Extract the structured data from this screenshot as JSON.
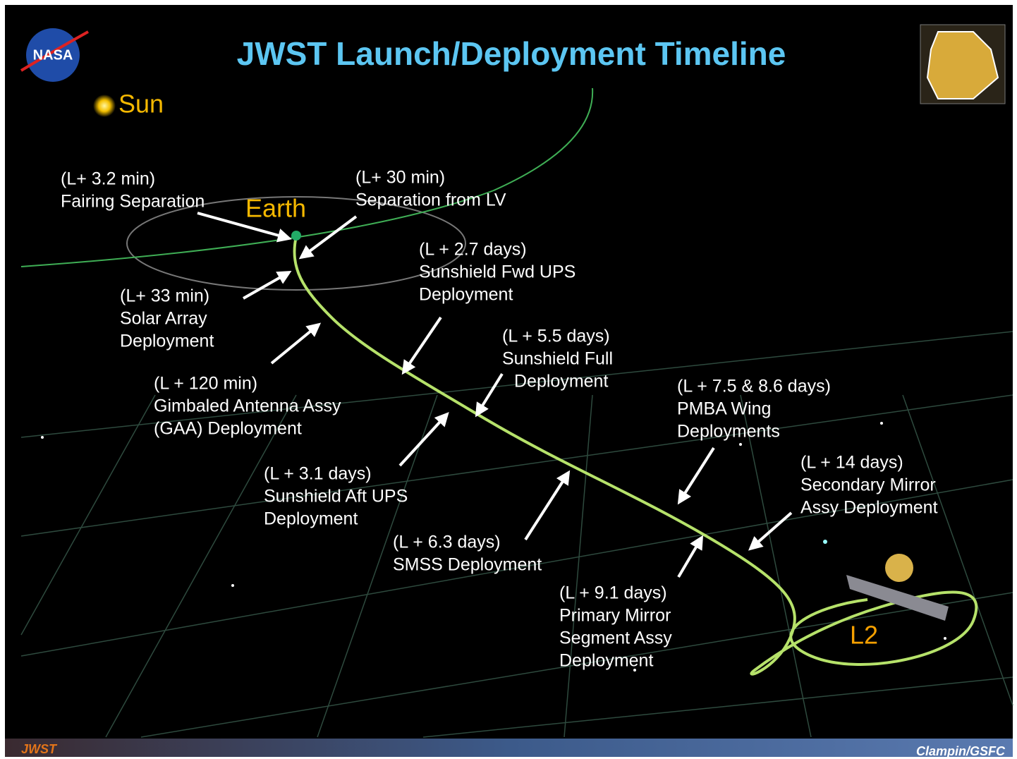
{
  "header": {
    "title": "JWST Launch/Deployment Timeline",
    "logo": "NASA"
  },
  "bodies": {
    "sun": "Sun",
    "earth": "Earth",
    "l2": "L2"
  },
  "events": [
    {
      "time": "(L+ 3.2 min)",
      "lines": [
        "Fairing Separation"
      ]
    },
    {
      "time": "(L+ 30 min)",
      "lines": [
        "Separation from LV"
      ]
    },
    {
      "time": "(L + 2.7 days)",
      "lines": [
        "Sunshield  Fwd UPS",
        "Deployment"
      ]
    },
    {
      "time": "(L+ 33 min)",
      "lines": [
        "Solar Array",
        "Deployment"
      ]
    },
    {
      "time": "(L + 5.5 days)",
      "lines": [
        "Sunshield Full",
        "Deployment"
      ]
    },
    {
      "time": "(L + 120 min)",
      "lines": [
        "Gimbaled Antenna  Assy",
        "(GAA) Deployment"
      ]
    },
    {
      "time": "(L + 7.5 & 8.6 days)",
      "lines": [
        "PMBA  Wing",
        "Deployments"
      ]
    },
    {
      "time": "(L + 3.1 days)",
      "lines": [
        "Sunshield Aft UPS",
        "Deployment"
      ]
    },
    {
      "time": "(L + 14 days)",
      "lines": [
        "Secondary Mirror",
        "Assy Deployment"
      ]
    },
    {
      "time": "(L + 6.3 days)",
      "lines": [
        "SMSS Deployment"
      ]
    },
    {
      "time": "(L + 9.1 days)",
      "lines": [
        "Primary Mirror",
        "Segment Assy",
        "Deployment"
      ]
    }
  ],
  "footer": {
    "left": "JWST",
    "right": "Clampin/GSFC"
  }
}
